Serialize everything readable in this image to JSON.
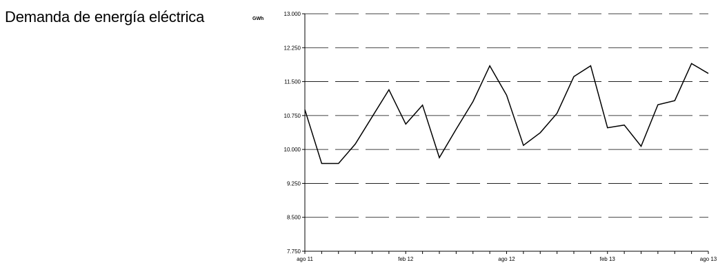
{
  "chart_data": {
    "type": "line",
    "title": "Demanda de energía eléctrica",
    "unit_label": "GWh",
    "xlabel": "",
    "ylabel": "",
    "ylim": [
      7750,
      13000
    ],
    "y_ticks": [
      7750,
      8500,
      9250,
      10000,
      10750,
      11500,
      12250,
      13000
    ],
    "y_tick_labels": [
      "7.750",
      "8.500",
      "9.250",
      "10.000",
      "10.750",
      "11.500",
      "12.250",
      "13.000"
    ],
    "x_tick_labels": [
      {
        "index": 0,
        "label": "ago 11"
      },
      {
        "index": 6,
        "label": "feb 12"
      },
      {
        "index": 12,
        "label": "ago 12"
      },
      {
        "index": 18,
        "label": "feb 13"
      },
      {
        "index": 24,
        "label": "ago 13"
      }
    ],
    "grid": "horizontal-dashed",
    "series": [
      {
        "values": [
          10880,
          9690,
          9690,
          10120,
          10720,
          11320,
          10560,
          10980,
          9820,
          10450,
          11060,
          11850,
          11200,
          10090,
          10370,
          10800,
          11610,
          11850,
          10480,
          10540,
          10070,
          10990,
          11080,
          11900,
          11680
        ]
      }
    ]
  }
}
